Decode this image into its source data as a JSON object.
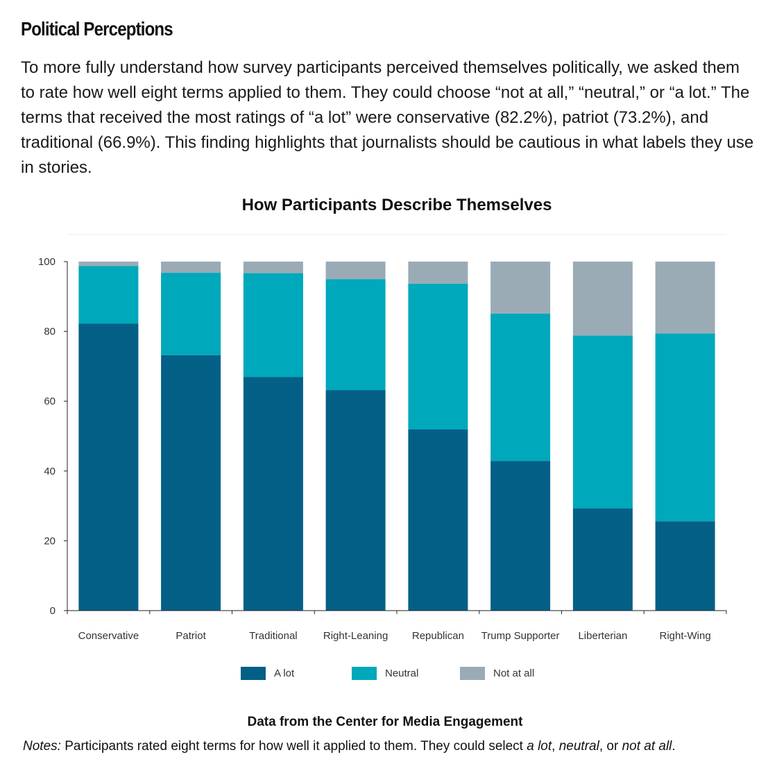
{
  "heading": "Political Perceptions",
  "intro": "To more fully understand how survey participants perceived themselves politically, we asked them to rate how well eight terms applied to them. They could choose “not at all,” “neutral,” or “a lot.”  The terms that received the most ratings of “a lot” were conservative (82.2%), patriot (73.2%), and traditional (66.9%).  This finding highlights that journalists should be cautious in what labels they use in stories.",
  "chart_data": {
    "type": "bar",
    "stacked": true,
    "title": "How Participants Describe Themselves",
    "categories": [
      "Conservative",
      "Patriot",
      "Traditional",
      "Right-Leaning",
      "Republican",
      "Trump Supporter",
      "Liberterian",
      "Right-Wing"
    ],
    "series": [
      {
        "name": "A lot",
        "color": "#045f87",
        "values": [
          82.2,
          73.2,
          66.9,
          63.2,
          51.9,
          42.9,
          29.3,
          25.6
        ]
      },
      {
        "name": "Neutral",
        "color": "#00a8bb",
        "values": [
          16.5,
          23.6,
          29.8,
          31.8,
          41.8,
          42.2,
          49.5,
          53.8
        ]
      },
      {
        "name": "Not at all",
        "color": "#9aabb6",
        "values": [
          1.3,
          3.2,
          3.3,
          5.0,
          6.3,
          14.9,
          21.2,
          20.6
        ]
      }
    ],
    "ylim": [
      0,
      100
    ],
    "yticks": [
      0,
      20,
      40,
      60,
      80,
      100
    ],
    "xlabel": "",
    "ylabel": "",
    "legend_position": "bottom-center"
  },
  "source": "Data from the Center for Media Engagement",
  "notes": {
    "label": "Notes:",
    "text_1": " Participants rated eight terms for how well it applied to them.  They could select ",
    "opt_1": "a lot",
    "sep_1": ", ",
    "opt_2": "neutral",
    "sep_2": ", or ",
    "opt_3": "not at all",
    "end": "."
  }
}
